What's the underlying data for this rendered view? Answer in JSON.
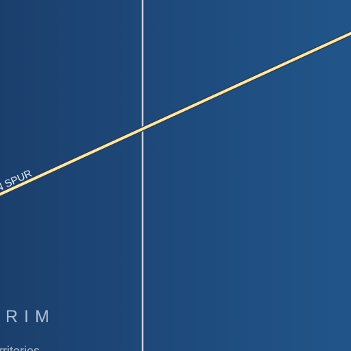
{
  "map": {
    "background": {
      "left_color": "#1b3f6d",
      "right_color": "#21558a"
    },
    "route": {
      "label": "N SPUR",
      "fill_color": "#f3e9b8",
      "casing_color": "#3a3a36"
    },
    "divider": {
      "color": "#c9d0d8"
    },
    "region_label": "RIM",
    "caption_label": "rritories"
  }
}
